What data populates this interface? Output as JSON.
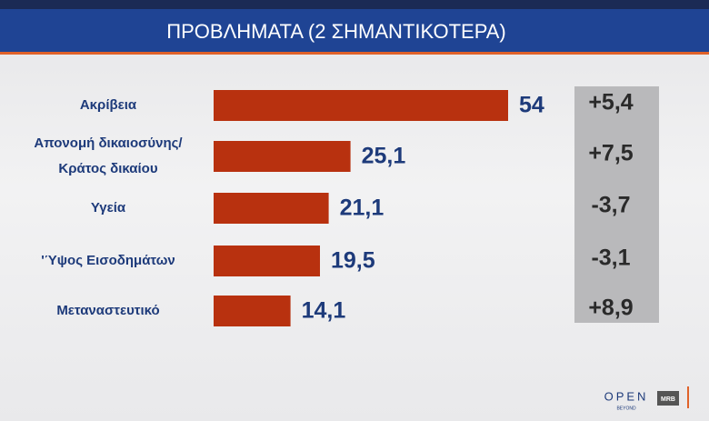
{
  "chart_data": {
    "type": "bar",
    "orientation": "horizontal",
    "title": "ΠΡΟΒΛΗΜΑΤΑ (2 ΣΗΜΑΝΤΙΚΟΤΕΡΑ)",
    "categories": [
      "Ακρίβεια",
      "Απονομή δικαιοσύνης/ Κράτος δικαίου",
      "Υγεία",
      "'Ύψος Εισοδημάτων",
      "Μεταναστευτικό"
    ],
    "values": [
      54,
      25.1,
      21.1,
      19.5,
      14.1
    ],
    "value_labels": [
      "54",
      "25,1",
      "21,1",
      "19,5",
      "14,1"
    ],
    "changes": [
      "+5,4",
      "+7,5",
      "-3,7",
      "-3,1",
      "+8,9"
    ],
    "color": "#b8310f"
  },
  "footer": {
    "logo": "OPEN",
    "logo_sub": "BEYOND",
    "pollster": "MRB"
  }
}
